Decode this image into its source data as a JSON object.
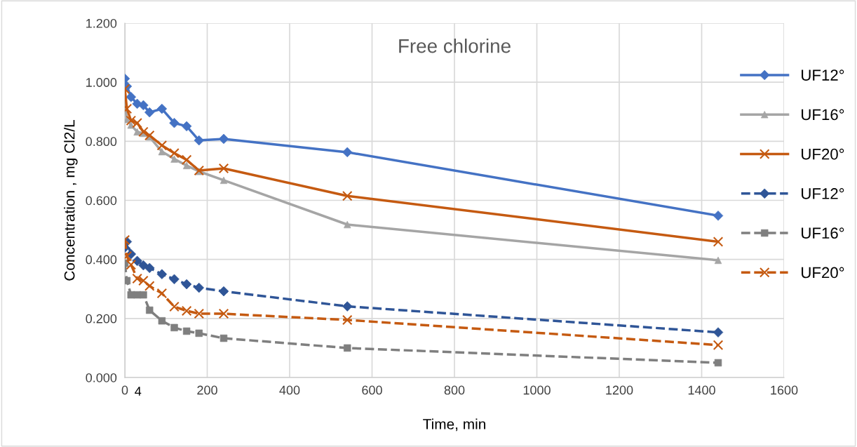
{
  "chart_data": {
    "type": "line",
    "title": "Free chlorine",
    "xlabel": "Time, min",
    "ylabel": "Concentration , mg Cl2/L",
    "x": [
      0,
      5,
      15,
      30,
      45,
      60,
      90,
      120,
      150,
      180,
      240,
      540,
      1440
    ],
    "series": [
      {
        "name": "UF12°",
        "color": "#4472c4",
        "marker": "diamond",
        "line_style": "solid",
        "values": [
          1.012,
          0.986,
          0.95,
          0.927,
          0.922,
          0.898,
          0.91,
          0.862,
          0.851,
          0.803,
          0.808,
          0.763,
          0.548
        ]
      },
      {
        "name": "UF16°",
        "color": "#a5a5a5",
        "marker": "triangle",
        "line_style": "solid",
        "values": [
          0.927,
          0.874,
          0.855,
          0.832,
          0.827,
          0.815,
          0.765,
          0.74,
          0.718,
          0.698,
          0.668,
          0.518,
          0.397
        ]
      },
      {
        "name": "UF20°",
        "color": "#c55a11",
        "marker": "cross",
        "line_style": "solid",
        "values": [
          0.977,
          0.91,
          0.87,
          0.862,
          0.832,
          0.82,
          0.786,
          0.76,
          0.737,
          0.701,
          0.708,
          0.615,
          0.46
        ]
      },
      {
        "name": "UF12°",
        "color": "#2f5597",
        "marker": "diamond",
        "line_style": "dashed",
        "values": [
          0.44,
          0.46,
          0.418,
          0.395,
          0.38,
          0.371,
          0.35,
          0.333,
          0.316,
          0.304,
          0.292,
          0.241,
          0.153
        ]
      },
      {
        "name": "UF16°",
        "color": "#7f7f7f",
        "marker": "square",
        "line_style": "dashed",
        "values": [
          0.387,
          0.328,
          0.28,
          0.28,
          0.28,
          0.228,
          0.192,
          0.169,
          0.157,
          0.15,
          0.133,
          0.1,
          0.05
        ]
      },
      {
        "name": "UF20°",
        "color": "#c55a11",
        "marker": "cross",
        "line_style": "dashed",
        "values": [
          0.466,
          0.411,
          0.382,
          0.335,
          0.328,
          0.31,
          0.285,
          0.24,
          0.226,
          0.216,
          0.216,
          0.195,
          0.11
        ]
      }
    ],
    "xlim": [
      0,
      1600
    ],
    "xticks": [
      0,
      200,
      400,
      600,
      800,
      1000,
      1200,
      1400,
      1600
    ],
    "ylim": [
      0,
      1.2
    ],
    "yticks": [
      {
        "value": 0,
        "label": "0.000"
      },
      {
        "value": 0.2,
        "label": "0.200"
      },
      {
        "value": 0.4,
        "label": "0.400"
      },
      {
        "value": 0.6,
        "label": "0.600"
      },
      {
        "value": 0.8,
        "label": "0.800"
      },
      {
        "value": 1.0,
        "label": "1.000"
      },
      {
        "value": 1.2,
        "label": "1.200"
      }
    ],
    "annotations": [
      "4"
    ],
    "grid": true,
    "legend": "right"
  }
}
